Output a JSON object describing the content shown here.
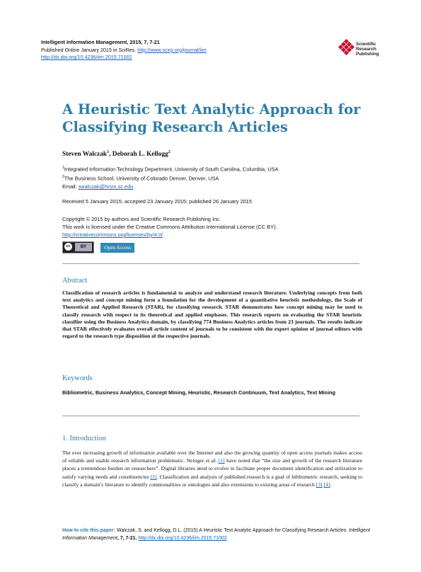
{
  "header": {
    "journal": "Intelligent Information Management, 2015, 7, 7-21",
    "published_prefix": "Published Online January 2015 in SciRes.",
    "journal_url": "http://www.scirp.org/journal/iim",
    "doi": "http://dx.doi.org/10.4236/iim.2015.71002"
  },
  "publisher_logo": {
    "line1": "Scientific",
    "line2": "Research",
    "line3": "Publishing",
    "color": "#c8102e"
  },
  "title": {
    "line1": "A Heuristic Text Analytic Approach for",
    "line2": "Classifying Research Articles"
  },
  "authors": {
    "a1": "Steven Walczak",
    "a1_sup": "1",
    "sep": ", ",
    "a2": "Deborah L. Kellogg",
    "a2_sup": "2"
  },
  "affiliations": {
    "aff1_sup": "1",
    "aff1": "Integrated Information Technology Department, University of South Carolina, Columbia, USA",
    "aff2_sup": "2",
    "aff2": "The Business School, University of Colorado Denver, Denver, USA",
    "email_label": "Email:",
    "email": "swalczak@hrsm.sc.edu"
  },
  "dates": "Received 5 January 2015; accepted 23 January 2015; published 26 January 2015",
  "copyright": {
    "line1": "Copyright © 2015 by authors and Scientific Research Publishing Inc.",
    "line2": "This work is licensed under the Creative Commons Attribution International License (CC BY).",
    "license_url": "http://creativecommons.org/licenses/by/4.0/",
    "cc_label": "cc",
    "by_label": "BY",
    "open_access": "Open Access"
  },
  "abstract": {
    "heading": "Abstract",
    "text": "Classification of research articles is fundamental to analyze and understand research literature. Underlying concepts from both text analytics and concept mining form a foundation for the development of a quantitative heuristic methodology, the Scale of Theoretical and Applied Research (STAR), for classifying research. STAR demonstrates how concept mining may be used to classify research with respect to its theoretical and applied emphases. This research reports on evaluating the STAR heuristic classifier using the Business Analytics domain, by classifying 774 Business Analytics articles from 23 journals. The results indicate that STAR effectively evaluates overall article content of journals to be consistent with the expert opinion of journal editors with regard to the research type disposition of the respective journals."
  },
  "keywords": {
    "heading": "Keywords",
    "text": "Bibliometric, Business Analytics, Concept Mining, Heuristic, Research Continuum, Text Analytics, Text Mining"
  },
  "introduction": {
    "heading": "1. Introduction",
    "p1": "The ever increasing growth of information available over the Internet and also the growing quantity of open access journals makes access of reliable and usable research information problematic. Stringer ",
    "p1_etal": "et al.",
    "p1_ref1": "[1]",
    "p2": " have noted that “the size and growth of the research literature places a tremendous burden on researchers”. Digital libraries need to evolve to facilitate proper document identification and utilization to satisfy varying needs and constituencies ",
    "p2_ref": "[2]",
    "p3": ". Classification and analysis of published research is a goal of bibliometric research, seeking to classify a domain’s literature to identify commonalities or ontologies and also extensions to existing areas of research ",
    "p3_ref1": "[3]",
    "p3_ref2": "[4]",
    "p3_end": "."
  },
  "cite": {
    "lead": "How to cite this paper:",
    "text": " Walczak, S. and Kellogg, D.L. (2015) A Heuristic Text Analytic Approach for Classifying Research Articles. ",
    "journal": "Intelligent Information Management",
    "vol": ", 7, 7-21. ",
    "doi": "http://dx.doi.org/10.4236/iim.2015.71002"
  }
}
